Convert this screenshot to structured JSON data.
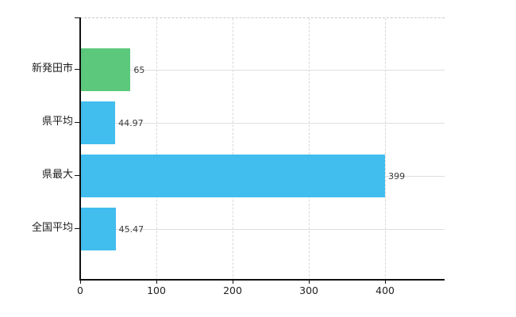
{
  "chart_data": {
    "type": "bar",
    "orientation": "horizontal",
    "title": "",
    "xlabel": "",
    "ylabel": "",
    "categories": [
      "新発田市",
      "県平均",
      "県最大",
      "全国平均"
    ],
    "values": [
      65,
      44.97,
      399,
      45.47
    ],
    "value_labels": [
      "65",
      "44.97",
      "399",
      "45.47"
    ],
    "series": [
      {
        "name": "value",
        "values": [
          65,
          44.97,
          399,
          45.47
        ]
      }
    ],
    "x_ticks": [
      0,
      100,
      200,
      300,
      400
    ],
    "x_tick_labels": [
      "0",
      "100",
      "200",
      "300",
      "400"
    ],
    "xlim": [
      0,
      478
    ],
    "grid": true,
    "legend": "none",
    "colors": {
      "highlight_bar": "#5cc87c",
      "default_bar": "#41bdee",
      "bar_colors": [
        "#5cc87c",
        "#41bdee",
        "#41bdee",
        "#41bdee"
      ],
      "gridline": "#dedede",
      "axis": "#111111",
      "category_text": "#1c1c1c",
      "value_text": "#3a3a3a",
      "background": "#ffffff"
    }
  }
}
